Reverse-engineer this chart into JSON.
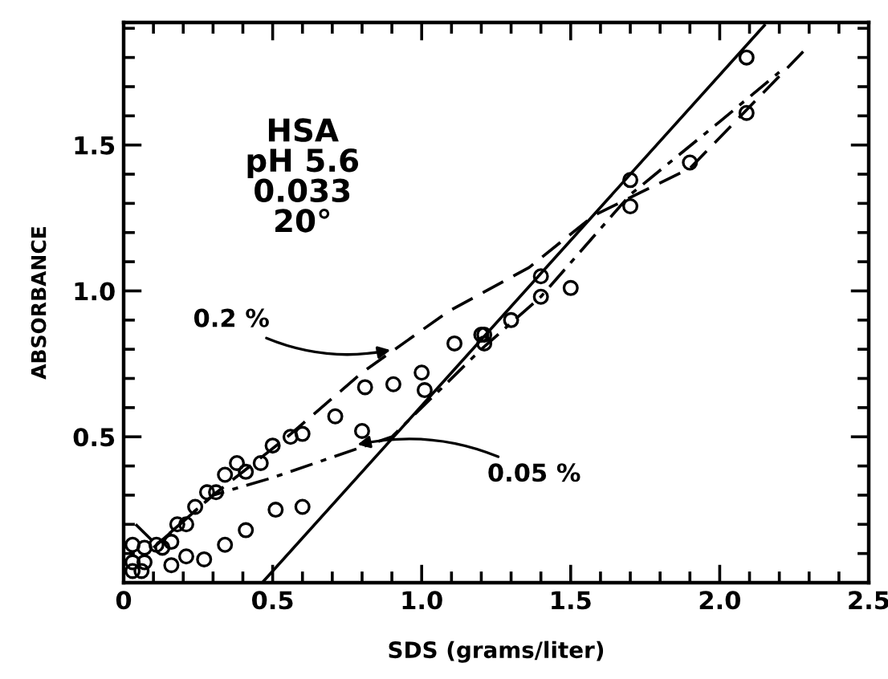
{
  "chart_data": {
    "type": "line",
    "xlabel": "SDS (grams/liter)",
    "ylabel": "ABSORBANCE",
    "xlim": [
      0,
      2.5
    ],
    "ylim": [
      0,
      1.92
    ],
    "xticks": [
      0,
      0.5,
      {
        "value": 1,
        "label": "1.0"
      },
      1.5,
      {
        "value": 2,
        "label": "2.0"
      },
      2.5
    ],
    "yticks": [
      0.5,
      {
        "value": 1,
        "label": "1.0"
      },
      1.5
    ],
    "grid": false,
    "legend": false,
    "series": [
      {
        "type": "scatter",
        "marker": "circle",
        "color": "#000000",
        "x": [
          0.03,
          0.07,
          0.11,
          0.13,
          0.16,
          0.18,
          0.21,
          0.24,
          0.28,
          0.31,
          0.34,
          0.38,
          0.41,
          0.46,
          0.5,
          0.56,
          0.6,
          0.71,
          0.81,
          0.905,
          1.0,
          1.11,
          1.2,
          1.21,
          1.4,
          1.7,
          1.9,
          2.09,
          0.03,
          0.07,
          0.03,
          0.06
        ],
        "values": [
          0.13,
          0.12,
          0.13,
          0.12,
          0.14,
          0.2,
          0.2,
          0.26,
          0.31,
          0.31,
          0.37,
          0.41,
          0.38,
          0.41,
          0.47,
          0.5,
          0.51,
          0.57,
          0.67,
          0.68,
          0.72,
          0.82,
          0.85,
          0.85,
          1.05,
          1.38,
          1.44,
          1.8,
          0.07,
          0.07,
          0.04,
          0.04
        ]
      },
      {
        "type": "scatter",
        "marker": "circle",
        "color": "#000000",
        "x": [
          0.16,
          0.21,
          0.27,
          0.34,
          0.41,
          0.51,
          0.6,
          0.8,
          1.01,
          1.21,
          1.3,
          1.4,
          1.5,
          1.7,
          2.09
        ],
        "values": [
          0.06,
          0.09,
          0.08,
          0.13,
          0.18,
          0.25,
          0.26,
          0.52,
          0.66,
          0.82,
          0.9,
          0.98,
          1.01,
          1.29,
          1.61
        ]
      },
      {
        "color": "#000000",
        "line_style": "solid",
        "x": [
          0.465,
          2.15
        ],
        "values": [
          0,
          1.91
        ]
      },
      {
        "color": "#000000",
        "line_style": "dashed",
        "x": [
          0.1,
          0.3,
          0.55,
          0.8,
          1.09,
          1.36,
          1.58,
          1.9,
          2.28
        ],
        "values": [
          0.12,
          0.3,
          0.5,
          0.72,
          0.93,
          1.08,
          1.26,
          1.42,
          1.82
        ]
      },
      {
        "color": "#000000",
        "line_style": "dashdot",
        "x": [
          0.04,
          0.11,
          0.3,
          0.5,
          0.7,
          0.9,
          1.2,
          1.4,
          1.7,
          2.0,
          2.2
        ],
        "values": [
          0.2,
          0.13,
          0.3,
          0.36,
          0.43,
          0.5,
          0.8,
          0.98,
          1.33,
          1.58,
          1.75
        ]
      }
    ],
    "annotations": [
      "HSA\npH 5.6\n0.033\n20°",
      {
        "text": "0.2 %",
        "x": 0.91,
        "y": 0.8
      },
      {
        "text": "0.05 %",
        "x": 0.77,
        "y": 0.47
      }
    ]
  }
}
